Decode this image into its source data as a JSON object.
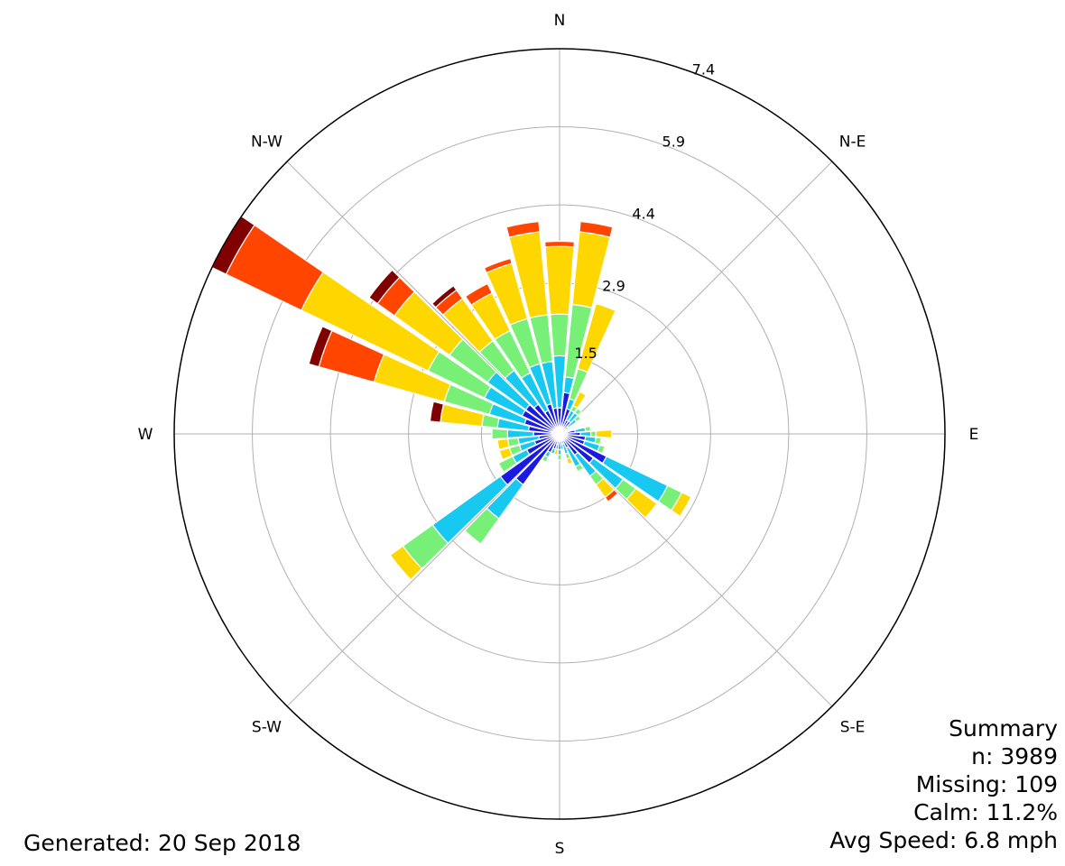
{
  "chart_data": {
    "type": "wind-rose",
    "direction_labels": [
      "N",
      "N-E",
      "E",
      "S-E",
      "S",
      "S-W",
      "W",
      "N-W"
    ],
    "radial_tick_labels": [
      "1.5",
      "2.9",
      "4.4",
      "5.9",
      "7.4"
    ],
    "radial_ticks": [
      1.5,
      2.9,
      4.4,
      5.9,
      7.4
    ],
    "rmax": 7.4,
    "n_sectors": 36,
    "sector_centers_deg": [
      0,
      10,
      20,
      30,
      40,
      50,
      60,
      70,
      80,
      90,
      100,
      110,
      120,
      130,
      140,
      150,
      160,
      170,
      180,
      190,
      200,
      210,
      220,
      230,
      240,
      250,
      260,
      270,
      280,
      290,
      300,
      310,
      320,
      330,
      340,
      350
    ],
    "speed_bin_colors": [
      "#1a1ae0",
      "#17c8f0",
      "#78f078",
      "#ffd700",
      "#ff4500",
      "#800000"
    ],
    "stacked_cumulative_values": [
      [
        0.5,
        1.5,
        2.3,
        3.6,
        3.7,
        3.7
      ],
      [
        0.8,
        1.1,
        2.5,
        3.9,
        4.1,
        4.1
      ],
      [
        0.5,
        0.7,
        1.3,
        2.6,
        2.6,
        2.6
      ],
      [
        0.3,
        0.5,
        0.6,
        0.9,
        0.9,
        0.9
      ],
      [
        0.3,
        0.5,
        0.6,
        0.6,
        0.6,
        0.6
      ],
      [
        0.2,
        0.4,
        0.5,
        0.5,
        0.5,
        0.5
      ],
      [
        0.1,
        0.2,
        0.2,
        0.2,
        0.2,
        0.2
      ],
      [
        0.0,
        0.1,
        0.1,
        0.1,
        0.1,
        0.1
      ],
      [
        0.3,
        0.5,
        0.6,
        0.6,
        0.6,
        0.6
      ],
      [
        0.4,
        0.6,
        0.7,
        1.0,
        1.0,
        1.0
      ],
      [
        0.5,
        0.7,
        0.8,
        0.8,
        0.8,
        0.8
      ],
      [
        0.5,
        0.8,
        0.9,
        0.9,
        0.9,
        0.9
      ],
      [
        1.0,
        2.3,
        2.6,
        2.8,
        2.8,
        2.8
      ],
      [
        0.8,
        1.5,
        1.8,
        2.3,
        2.3,
        2.3
      ],
      [
        0.5,
        1.0,
        1.2,
        1.5,
        1.6,
        1.6
      ],
      [
        0.3,
        0.7,
        0.8,
        0.8,
        0.8,
        0.8
      ],
      [
        0.2,
        0.4,
        0.5,
        0.6,
        0.6,
        0.6
      ],
      [
        0.2,
        0.3,
        0.3,
        0.3,
        0.3,
        0.3
      ],
      [
        0.3,
        0.4,
        0.5,
        0.5,
        0.5,
        0.5
      ],
      [
        0.2,
        0.3,
        0.3,
        0.4,
        0.4,
        0.4
      ],
      [
        0.3,
        0.4,
        0.4,
        0.4,
        0.4,
        0.4
      ],
      [
        0.4,
        0.5,
        0.6,
        0.6,
        0.6,
        0.6
      ],
      [
        1.2,
        2.0,
        2.6,
        2.6,
        2.6,
        2.6
      ],
      [
        1.4,
        3.0,
        3.7,
        4.0,
        4.0,
        4.0
      ],
      [
        0.7,
        1.0,
        1.3,
        1.3,
        1.3,
        1.3
      ],
      [
        0.5,
        0.8,
        1.0,
        1.2,
        1.2,
        1.2
      ],
      [
        0.4,
        0.8,
        1.0,
        1.2,
        1.2,
        1.2
      ],
      [
        0.5,
        1.0,
        1.3,
        1.3,
        1.3,
        1.3
      ],
      [
        0.6,
        1.2,
        1.5,
        2.3,
        2.3,
        2.5
      ],
      [
        0.7,
        1.4,
        2.3,
        3.7,
        4.8,
        5.0
      ],
      [
        0.8,
        1.6,
        2.8,
        5.5,
        7.1,
        7.4
      ],
      [
        0.8,
        1.7,
        2.6,
        3.9,
        4.3,
        4.5
      ],
      [
        0.7,
        1.5,
        2.2,
        3.2,
        3.4,
        3.5
      ],
      [
        0.5,
        1.3,
        2.2,
        3.0,
        3.2,
        3.2
      ],
      [
        0.6,
        1.4,
        2.3,
        3.4,
        3.5,
        3.5
      ],
      [
        0.5,
        1.4,
        2.3,
        3.9,
        4.1,
        4.1
      ]
    ]
  },
  "summary": {
    "title": "Summary",
    "n": "n: 3989",
    "missing": "Missing: 109",
    "calm": "Calm: 11.2%",
    "avg_speed": "Avg Speed: 6.8 mph"
  },
  "footer": {
    "generated": "Generated: 20 Sep 2018"
  }
}
